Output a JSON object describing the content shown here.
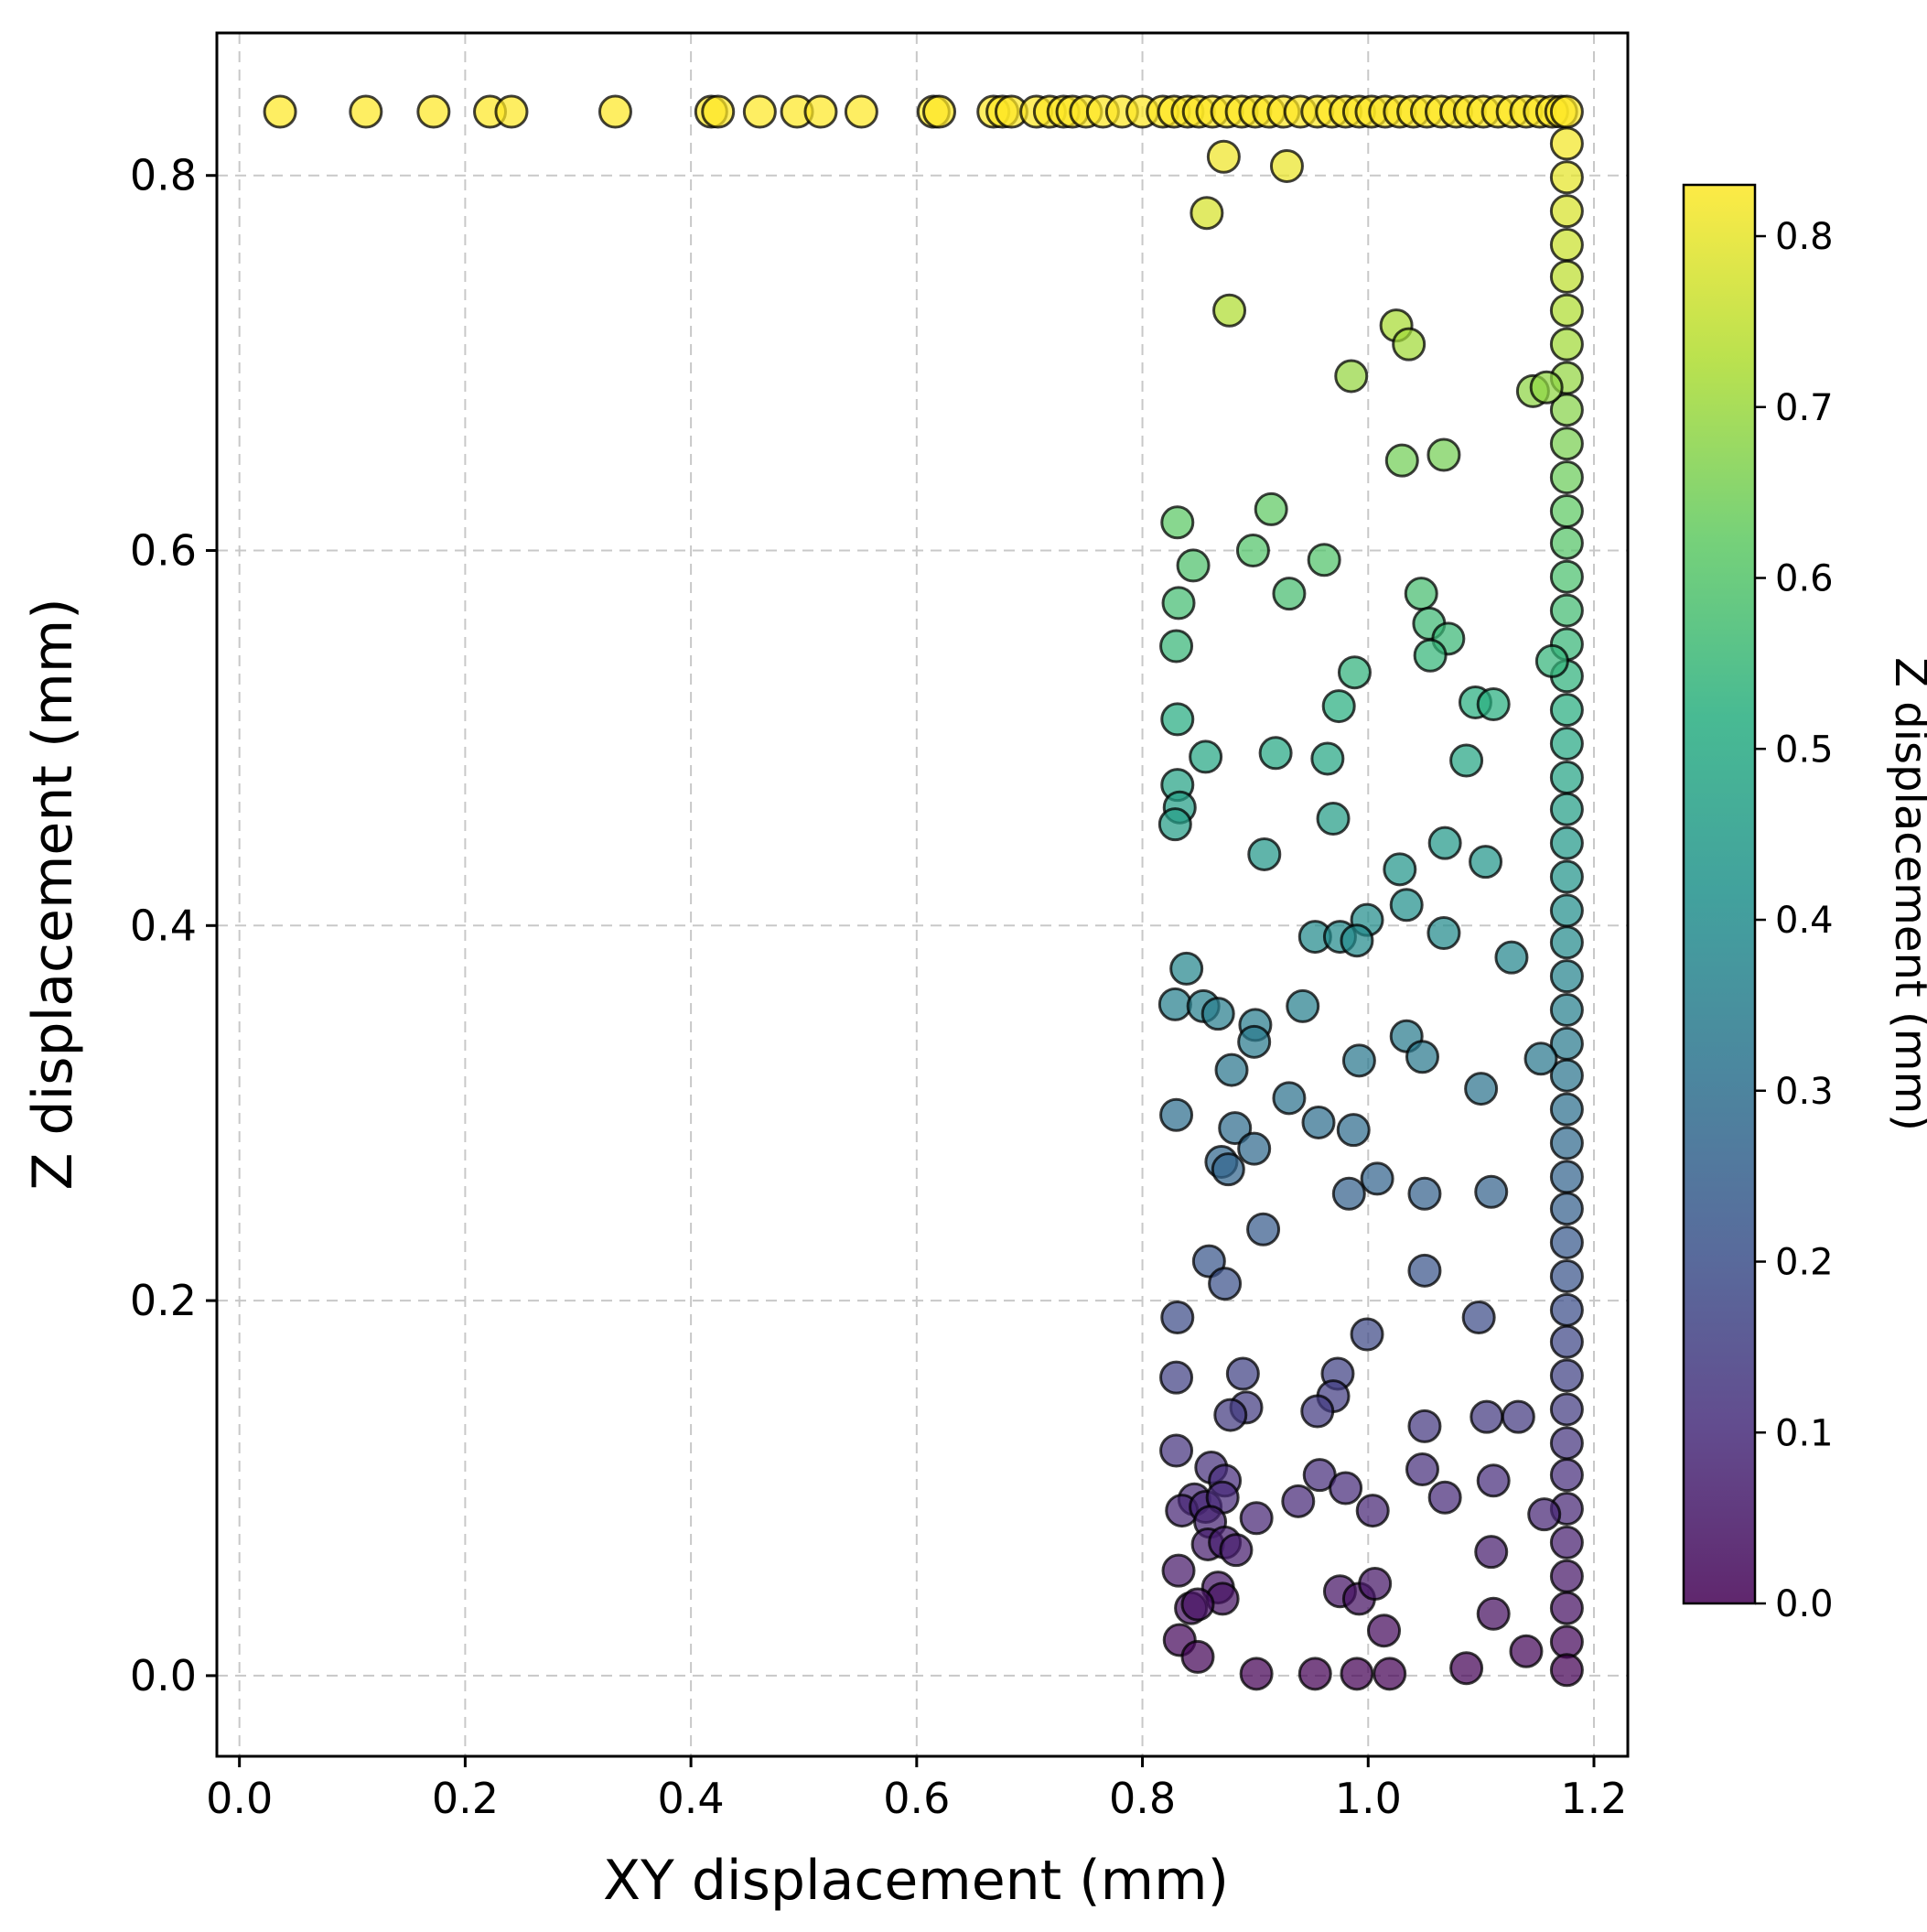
{
  "chart_data": {
    "type": "scatter",
    "title": "",
    "xlabel": "XY displacement (mm)",
    "ylabel": "Z displacement (mm)",
    "xlim": [
      -0.02,
      1.23
    ],
    "ylim": [
      -0.043,
      0.876
    ],
    "xticks": [
      "0.0",
      "0.2",
      "0.4",
      "0.6",
      "0.8",
      "1.0",
      "1.2"
    ],
    "xtick_values": [
      0,
      0.2,
      0.4,
      0.6,
      0.8,
      1.0,
      1.2
    ],
    "yticks": [
      "0.0",
      "0.2",
      "0.4",
      "0.6",
      "0.8"
    ],
    "ytick_values": [
      0,
      0.2,
      0.4,
      0.6,
      0.8
    ],
    "grid": true,
    "colormap": "viridis",
    "colorbar": {
      "label": "Z displacement (mm)",
      "range": [
        0,
        0.83
      ],
      "ticks": [
        "0.0",
        "0.1",
        "0.2",
        "0.3",
        "0.4",
        "0.5",
        "0.6",
        "0.7",
        "0.8"
      ],
      "tick_values": [
        0,
        0.1,
        0.2,
        0.3,
        0.4,
        0.5,
        0.6,
        0.7,
        0.8
      ],
      "placement": "right"
    },
    "points": [
      [
        0.036,
        0.834
      ],
      [
        0.112,
        0.834
      ],
      [
        0.172,
        0.834
      ],
      [
        0.222,
        0.834
      ],
      [
        0.241,
        0.834
      ],
      [
        0.333,
        0.834
      ],
      [
        0.418,
        0.834
      ],
      [
        0.424,
        0.834
      ],
      [
        0.461,
        0.834
      ],
      [
        0.494,
        0.834
      ],
      [
        0.515,
        0.834
      ],
      [
        0.551,
        0.834
      ],
      [
        0.615,
        0.834
      ],
      [
        0.62,
        0.834
      ],
      [
        0.668,
        0.834
      ],
      [
        0.676,
        0.834
      ],
      [
        0.684,
        0.834
      ],
      [
        0.706,
        0.834
      ],
      [
        0.718,
        0.834
      ],
      [
        0.73,
        0.834
      ],
      [
        0.738,
        0.834
      ],
      [
        0.75,
        0.834
      ],
      [
        0.765,
        0.834
      ],
      [
        0.782,
        0.834
      ],
      [
        0.8,
        0.834
      ],
      [
        0.818,
        0.834
      ],
      [
        0.828,
        0.834
      ],
      [
        0.84,
        0.834
      ],
      [
        0.85,
        0.834
      ],
      [
        0.862,
        0.834
      ],
      [
        0.875,
        0.834
      ],
      [
        0.888,
        0.834
      ],
      [
        0.9,
        0.834
      ],
      [
        0.912,
        0.834
      ],
      [
        0.925,
        0.834
      ],
      [
        0.94,
        0.834
      ],
      [
        0.955,
        0.834
      ],
      [
        0.968,
        0.834
      ],
      [
        0.98,
        0.834
      ],
      [
        0.992,
        0.834
      ],
      [
        1.003,
        0.834
      ],
      [
        1.015,
        0.834
      ],
      [
        1.028,
        0.834
      ],
      [
        1.04,
        0.834
      ],
      [
        1.052,
        0.834
      ],
      [
        1.065,
        0.834
      ],
      [
        1.078,
        0.834
      ],
      [
        1.09,
        0.834
      ],
      [
        1.102,
        0.834
      ],
      [
        1.115,
        0.834
      ],
      [
        1.128,
        0.834
      ],
      [
        1.14,
        0.834
      ],
      [
        1.152,
        0.834
      ],
      [
        1.163,
        0.834
      ],
      [
        1.171,
        0.834
      ],
      [
        1.176,
        0.834
      ],
      [
        1.176,
        0.817
      ],
      [
        1.176,
        0.799
      ],
      [
        1.176,
        0.781
      ],
      [
        1.176,
        0.763
      ],
      [
        1.176,
        0.746
      ],
      [
        1.176,
        0.728
      ],
      [
        1.176,
        0.71
      ],
      [
        1.176,
        0.692
      ],
      [
        1.176,
        0.675
      ],
      [
        1.176,
        0.657
      ],
      [
        1.176,
        0.639
      ],
      [
        1.176,
        0.621
      ],
      [
        1.176,
        0.604
      ],
      [
        1.176,
        0.586
      ],
      [
        1.176,
        0.568
      ],
      [
        1.176,
        0.55
      ],
      [
        1.176,
        0.533
      ],
      [
        1.176,
        0.515
      ],
      [
        1.176,
        0.497
      ],
      [
        1.176,
        0.479
      ],
      [
        1.176,
        0.462
      ],
      [
        1.176,
        0.444
      ],
      [
        1.176,
        0.426
      ],
      [
        1.176,
        0.408
      ],
      [
        1.176,
        0.391
      ],
      [
        1.176,
        0.373
      ],
      [
        1.176,
        0.355
      ],
      [
        1.176,
        0.337
      ],
      [
        1.176,
        0.32
      ],
      [
        1.176,
        0.302
      ],
      [
        1.176,
        0.284
      ],
      [
        1.176,
        0.266
      ],
      [
        1.176,
        0.249
      ],
      [
        1.176,
        0.231
      ],
      [
        1.176,
        0.213
      ],
      [
        1.176,
        0.195
      ],
      [
        1.176,
        0.178
      ],
      [
        1.176,
        0.16
      ],
      [
        1.176,
        0.142
      ],
      [
        1.176,
        0.124
      ],
      [
        1.176,
        0.107
      ],
      [
        1.176,
        0.089
      ],
      [
        1.176,
        0.071
      ],
      [
        1.176,
        0.053
      ],
      [
        1.176,
        0.036
      ],
      [
        1.176,
        0.018
      ],
      [
        1.176,
        0.003
      ],
      [
        0.872,
        0.81
      ],
      [
        0.928,
        0.805
      ],
      [
        0.857,
        0.78
      ],
      [
        0.877,
        0.728
      ],
      [
        1.025,
        0.72
      ],
      [
        1.036,
        0.71
      ],
      [
        0.985,
        0.693
      ],
      [
        1.146,
        0.685
      ],
      [
        1.158,
        0.687
      ],
      [
        1.03,
        0.648
      ],
      [
        1.067,
        0.651
      ],
      [
        0.914,
        0.622
      ],
      [
        0.831,
        0.615
      ],
      [
        0.898,
        0.6
      ],
      [
        0.961,
        0.595
      ],
      [
        0.845,
        0.592
      ],
      [
        0.93,
        0.577
      ],
      [
        1.047,
        0.577
      ],
      [
        0.832,
        0.572
      ],
      [
        1.054,
        0.561
      ],
      [
        1.071,
        0.553
      ],
      [
        0.83,
        0.549
      ],
      [
        1.055,
        0.544
      ],
      [
        1.163,
        0.541
      ],
      [
        0.988,
        0.535
      ],
      [
        1.095,
        0.519
      ],
      [
        1.111,
        0.518
      ],
      [
        0.974,
        0.517
      ],
      [
        0.831,
        0.51
      ],
      [
        0.856,
        0.49
      ],
      [
        0.918,
        0.492
      ],
      [
        0.964,
        0.489
      ],
      [
        1.087,
        0.488
      ],
      [
        0.831,
        0.475
      ],
      [
        0.833,
        0.463
      ],
      [
        0.829,
        0.454
      ],
      [
        0.969,
        0.457
      ],
      [
        1.068,
        0.444
      ],
      [
        0.908,
        0.438
      ],
      [
        1.104,
        0.434
      ],
      [
        1.028,
        0.43
      ],
      [
        1.034,
        0.411
      ],
      [
        0.999,
        0.403
      ],
      [
        0.953,
        0.394
      ],
      [
        0.975,
        0.394
      ],
      [
        0.99,
        0.392
      ],
      [
        1.067,
        0.396
      ],
      [
        1.127,
        0.383
      ],
      [
        0.839,
        0.377
      ],
      [
        0.829,
        0.358
      ],
      [
        0.854,
        0.357
      ],
      [
        0.867,
        0.353
      ],
      [
        0.942,
        0.357
      ],
      [
        0.9,
        0.347
      ],
      [
        0.899,
        0.338
      ],
      [
        1.034,
        0.341
      ],
      [
        1.048,
        0.33
      ],
      [
        0.992,
        0.328
      ],
      [
        0.879,
        0.323
      ],
      [
        1.153,
        0.329
      ],
      [
        1.1,
        0.313
      ],
      [
        0.93,
        0.308
      ],
      [
        0.83,
        0.299
      ],
      [
        0.956,
        0.295
      ],
      [
        0.882,
        0.292
      ],
      [
        0.987,
        0.291
      ],
      [
        0.899,
        0.281
      ],
      [
        0.87,
        0.274
      ],
      [
        0.876,
        0.27
      ],
      [
        1.008,
        0.265
      ],
      [
        0.983,
        0.257
      ],
      [
        1.05,
        0.257
      ],
      [
        1.109,
        0.258
      ],
      [
        0.907,
        0.238
      ],
      [
        0.859,
        0.221
      ],
      [
        1.05,
        0.216
      ],
      [
        0.873,
        0.209
      ],
      [
        0.831,
        0.191
      ],
      [
        1.098,
        0.191
      ],
      [
        0.999,
        0.182
      ],
      [
        0.83,
        0.159
      ],
      [
        0.889,
        0.161
      ],
      [
        0.973,
        0.161
      ],
      [
        0.969,
        0.149
      ],
      [
        0.892,
        0.143
      ],
      [
        0.878,
        0.139
      ],
      [
        0.955,
        0.141
      ],
      [
        1.105,
        0.138
      ],
      [
        1.133,
        0.138
      ],
      [
        1.05,
        0.133
      ],
      [
        0.83,
        0.12
      ],
      [
        0.861,
        0.111
      ],
      [
        0.957,
        0.107
      ],
      [
        0.873,
        0.104
      ],
      [
        1.048,
        0.11
      ],
      [
        1.111,
        0.104
      ],
      [
        0.98,
        0.1
      ],
      [
        0.938,
        0.093
      ],
      [
        1.068,
        0.095
      ],
      [
        0.846,
        0.094
      ],
      [
        0.835,
        0.088
      ],
      [
        0.856,
        0.09
      ],
      [
        0.871,
        0.095
      ],
      [
        1.004,
        0.088
      ],
      [
        0.901,
        0.084
      ],
      [
        1.156,
        0.086
      ],
      [
        0.86,
        0.082
      ],
      [
        0.858,
        0.07
      ],
      [
        0.873,
        0.071
      ],
      [
        0.883,
        0.067
      ],
      [
        1.109,
        0.066
      ],
      [
        0.832,
        0.056
      ],
      [
        0.867,
        0.047
      ],
      [
        0.871,
        0.041
      ],
      [
        0.975,
        0.045
      ],
      [
        0.992,
        0.041
      ],
      [
        1.006,
        0.049
      ],
      [
        0.843,
        0.036
      ],
      [
        0.849,
        0.038
      ],
      [
        1.111,
        0.033
      ],
      [
        1.014,
        0.024
      ],
      [
        0.833,
        0.019
      ],
      [
        1.14,
        0.013
      ],
      [
        0.849,
        0.01
      ],
      [
        1.087,
        0.004
      ],
      [
        0.901,
        0.001
      ],
      [
        0.953,
        0.001
      ],
      [
        0.99,
        0.001
      ],
      [
        1.019,
        0.001
      ]
    ]
  }
}
